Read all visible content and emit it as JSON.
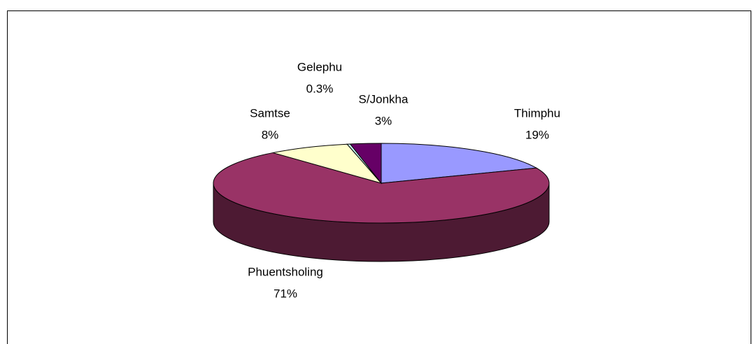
{
  "chart_data": {
    "type": "pie",
    "categories": [
      "Thimphu",
      "Phuentsholing",
      "Samtse",
      "Gelephu",
      "S/Jonkha"
    ],
    "values": [
      19,
      71,
      8,
      0.3,
      3
    ],
    "value_labels": [
      "19%",
      "71%",
      "8%",
      "0.3%",
      "3%"
    ],
    "colors": [
      "#9999ff",
      "#993366",
      "#ffffcc",
      "#ccffff",
      "#660066"
    ]
  }
}
